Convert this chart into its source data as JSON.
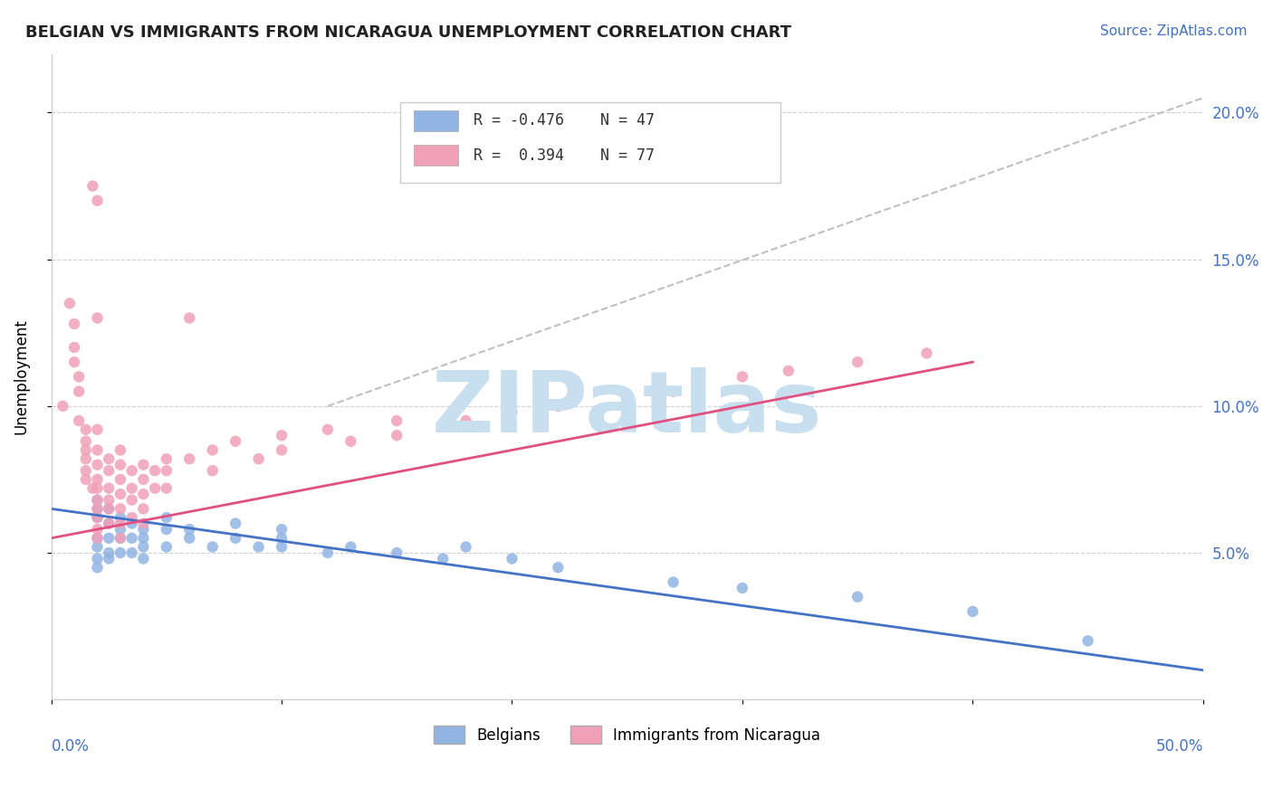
{
  "title": "BELGIAN VS IMMIGRANTS FROM NICARAGUA UNEMPLOYMENT CORRELATION CHART",
  "source": "Source: ZipAtlas.com",
  "ylabel": "Unemployment",
  "legend_blue_r": "R = -0.476",
  "legend_blue_n": "N = 47",
  "legend_pink_r": "R =  0.394",
  "legend_pink_n": "N = 77",
  "ytick_vals": [
    0.05,
    0.1,
    0.15,
    0.2
  ],
  "xlim": [
    0.0,
    0.5
  ],
  "ylim": [
    0.0,
    0.22
  ],
  "blue_color": "#92b4e3",
  "pink_color": "#f0a0b8",
  "trend_blue_color": "#4472c4",
  "trend_pink_color": "#e05080",
  "trend_dashed_color": "#c0c0c0",
  "watermark_color": "#c8dff0",
  "blue_scatter": [
    [
      0.02,
      0.068
    ],
    [
      0.02,
      0.065
    ],
    [
      0.02,
      0.062
    ],
    [
      0.02,
      0.055
    ],
    [
      0.02,
      0.052
    ],
    [
      0.02,
      0.048
    ],
    [
      0.02,
      0.045
    ],
    [
      0.025,
      0.065
    ],
    [
      0.025,
      0.06
    ],
    [
      0.025,
      0.055
    ],
    [
      0.025,
      0.05
    ],
    [
      0.025,
      0.048
    ],
    [
      0.03,
      0.062
    ],
    [
      0.03,
      0.058
    ],
    [
      0.03,
      0.055
    ],
    [
      0.03,
      0.05
    ],
    [
      0.035,
      0.06
    ],
    [
      0.035,
      0.055
    ],
    [
      0.035,
      0.05
    ],
    [
      0.04,
      0.058
    ],
    [
      0.04,
      0.055
    ],
    [
      0.04,
      0.052
    ],
    [
      0.04,
      0.048
    ],
    [
      0.05,
      0.062
    ],
    [
      0.05,
      0.058
    ],
    [
      0.05,
      0.052
    ],
    [
      0.06,
      0.058
    ],
    [
      0.06,
      0.055
    ],
    [
      0.07,
      0.052
    ],
    [
      0.08,
      0.06
    ],
    [
      0.08,
      0.055
    ],
    [
      0.09,
      0.052
    ],
    [
      0.1,
      0.058
    ],
    [
      0.1,
      0.055
    ],
    [
      0.1,
      0.052
    ],
    [
      0.12,
      0.05
    ],
    [
      0.13,
      0.052
    ],
    [
      0.15,
      0.05
    ],
    [
      0.17,
      0.048
    ],
    [
      0.18,
      0.052
    ],
    [
      0.2,
      0.048
    ],
    [
      0.22,
      0.045
    ],
    [
      0.27,
      0.04
    ],
    [
      0.3,
      0.038
    ],
    [
      0.35,
      0.035
    ],
    [
      0.4,
      0.03
    ],
    [
      0.45,
      0.02
    ]
  ],
  "pink_scatter": [
    [
      0.005,
      0.1
    ],
    [
      0.008,
      0.135
    ],
    [
      0.01,
      0.128
    ],
    [
      0.01,
      0.12
    ],
    [
      0.01,
      0.115
    ],
    [
      0.012,
      0.11
    ],
    [
      0.012,
      0.105
    ],
    [
      0.012,
      0.095
    ],
    [
      0.015,
      0.092
    ],
    [
      0.015,
      0.088
    ],
    [
      0.015,
      0.085
    ],
    [
      0.015,
      0.082
    ],
    [
      0.015,
      0.078
    ],
    [
      0.015,
      0.075
    ],
    [
      0.018,
      0.175
    ],
    [
      0.018,
      0.072
    ],
    [
      0.02,
      0.17
    ],
    [
      0.02,
      0.13
    ],
    [
      0.02,
      0.092
    ],
    [
      0.02,
      0.085
    ],
    [
      0.02,
      0.08
    ],
    [
      0.02,
      0.075
    ],
    [
      0.02,
      0.072
    ],
    [
      0.02,
      0.068
    ],
    [
      0.02,
      0.065
    ],
    [
      0.02,
      0.062
    ],
    [
      0.02,
      0.058
    ],
    [
      0.02,
      0.055
    ],
    [
      0.025,
      0.082
    ],
    [
      0.025,
      0.078
    ],
    [
      0.025,
      0.072
    ],
    [
      0.025,
      0.068
    ],
    [
      0.025,
      0.065
    ],
    [
      0.025,
      0.06
    ],
    [
      0.03,
      0.085
    ],
    [
      0.03,
      0.08
    ],
    [
      0.03,
      0.075
    ],
    [
      0.03,
      0.07
    ],
    [
      0.03,
      0.065
    ],
    [
      0.03,
      0.06
    ],
    [
      0.03,
      0.055
    ],
    [
      0.035,
      0.078
    ],
    [
      0.035,
      0.072
    ],
    [
      0.035,
      0.068
    ],
    [
      0.035,
      0.062
    ],
    [
      0.04,
      0.08
    ],
    [
      0.04,
      0.075
    ],
    [
      0.04,
      0.07
    ],
    [
      0.04,
      0.065
    ],
    [
      0.04,
      0.06
    ],
    [
      0.045,
      0.078
    ],
    [
      0.045,
      0.072
    ],
    [
      0.05,
      0.082
    ],
    [
      0.05,
      0.078
    ],
    [
      0.05,
      0.072
    ],
    [
      0.06,
      0.082
    ],
    [
      0.06,
      0.13
    ],
    [
      0.07,
      0.085
    ],
    [
      0.07,
      0.078
    ],
    [
      0.08,
      0.088
    ],
    [
      0.09,
      0.082
    ],
    [
      0.1,
      0.09
    ],
    [
      0.1,
      0.085
    ],
    [
      0.12,
      0.092
    ],
    [
      0.13,
      0.088
    ],
    [
      0.15,
      0.095
    ],
    [
      0.15,
      0.09
    ],
    [
      0.18,
      0.095
    ],
    [
      0.2,
      0.098
    ],
    [
      0.22,
      0.1
    ],
    [
      0.25,
      0.102
    ],
    [
      0.27,
      0.105
    ],
    [
      0.28,
      0.108
    ],
    [
      0.3,
      0.11
    ],
    [
      0.32,
      0.112
    ],
    [
      0.35,
      0.115
    ],
    [
      0.38,
      0.118
    ]
  ],
  "blue_trend_x": [
    0.0,
    0.5
  ],
  "blue_trend_y": [
    0.065,
    0.01
  ],
  "pink_trend_x": [
    0.0,
    0.4
  ],
  "pink_trend_y": [
    0.055,
    0.115
  ],
  "dash_trend_x": [
    0.12,
    0.5
  ],
  "dash_trend_y": [
    0.1,
    0.205
  ]
}
